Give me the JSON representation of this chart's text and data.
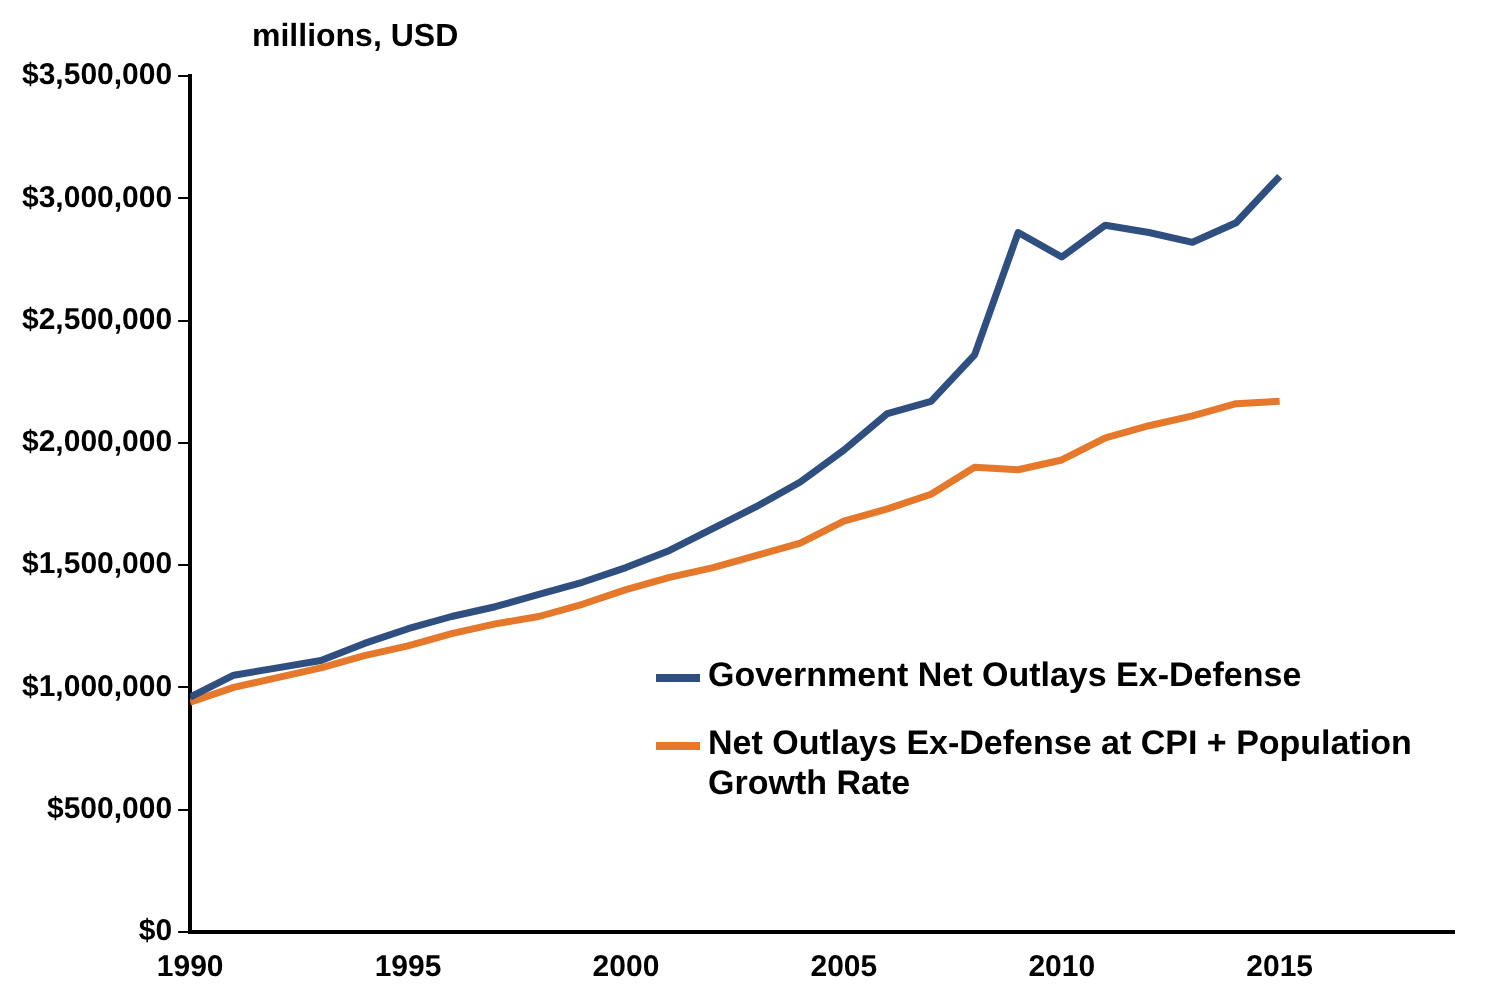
{
  "chart_data": {
    "type": "line",
    "ylabel": "millions, USD",
    "x": [
      1990,
      1991,
      1992,
      1993,
      1994,
      1995,
      1996,
      1997,
      1998,
      1999,
      2000,
      2001,
      2002,
      2003,
      2004,
      2005,
      2006,
      2007,
      2008,
      2009,
      2010,
      2011,
      2012,
      2013,
      2014,
      2015
    ],
    "series": [
      {
        "name": "Government Net Outlays Ex-Defense",
        "color": "#2e4f7f",
        "values": [
          960000,
          1050000,
          1080000,
          1110000,
          1180000,
          1240000,
          1290000,
          1330000,
          1380000,
          1430000,
          1490000,
          1560000,
          1650000,
          1740000,
          1840000,
          1970000,
          2120000,
          2170000,
          2360000,
          2860000,
          2760000,
          2890000,
          2860000,
          2820000,
          2900000,
          3090000
        ]
      },
      {
        "name": "Net Outlays Ex-Defense at CPI + Population Growth Rate",
        "color": "#e5782a",
        "values": [
          940000,
          1000000,
          1040000,
          1080000,
          1130000,
          1170000,
          1220000,
          1260000,
          1290000,
          1340000,
          1400000,
          1450000,
          1490000,
          1540000,
          1590000,
          1680000,
          1730000,
          1790000,
          1900000,
          1890000,
          1930000,
          2020000,
          2070000,
          2110000,
          2160000,
          2170000
        ]
      }
    ],
    "xlim": [
      1990,
      2019
    ],
    "xticks": [
      1990,
      1995,
      2000,
      2005,
      2010,
      2015
    ],
    "ylim": [
      0,
      3500000
    ],
    "yticks": [
      {
        "value": 0,
        "label": "$0"
      },
      {
        "value": 500000,
        "label": "$500,000"
      },
      {
        "value": 1000000,
        "label": "$1,000,000"
      },
      {
        "value": 1500000,
        "label": "$1,500,000"
      },
      {
        "value": 2000000,
        "label": "$2,000,000"
      },
      {
        "value": 2500000,
        "label": "$2,500,000"
      },
      {
        "value": 3000000,
        "label": "$3,000,000"
      },
      {
        "value": 3500000,
        "label": "$3,500,000"
      }
    ],
    "grid": false,
    "legend": "bottom right",
    "marker": "none",
    "line_style": "solid"
  }
}
